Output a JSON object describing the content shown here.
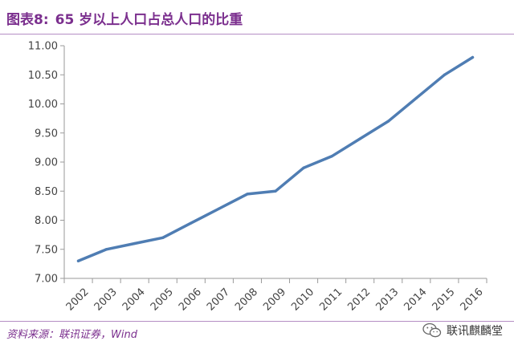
{
  "header": {
    "figure_label": "图表8:",
    "title": "65 岁以上人口占总人口的比重"
  },
  "footer": {
    "source": "资料来源：联讯证券，Wind",
    "watermark": "联讯麒麟堂"
  },
  "icons": {
    "watermark_icon": "wechat-icon"
  },
  "colors": {
    "accent": "#7b2f8e",
    "line": "#4f7db3",
    "rule": "#b58ec4"
  },
  "chart_data": {
    "type": "line",
    "categories": [
      "2002",
      "2003",
      "2004",
      "2005",
      "2006",
      "2007",
      "2008",
      "2009",
      "2010",
      "2011",
      "2012",
      "2013",
      "2014",
      "2015",
      "2016"
    ],
    "series": [
      {
        "values": [
          7.3,
          7.5,
          7.6,
          7.7,
          7.95,
          8.2,
          8.45,
          8.5,
          8.9,
          9.1,
          9.4,
          9.7,
          10.1,
          10.5,
          10.8
        ]
      }
    ],
    "yticks": [
      "7.00",
      "7.50",
      "8.00",
      "8.50",
      "9.00",
      "9.50",
      "10.00",
      "10.50",
      "11.00"
    ],
    "ylim": [
      7,
      11
    ],
    "grid": false,
    "legend": "none"
  }
}
